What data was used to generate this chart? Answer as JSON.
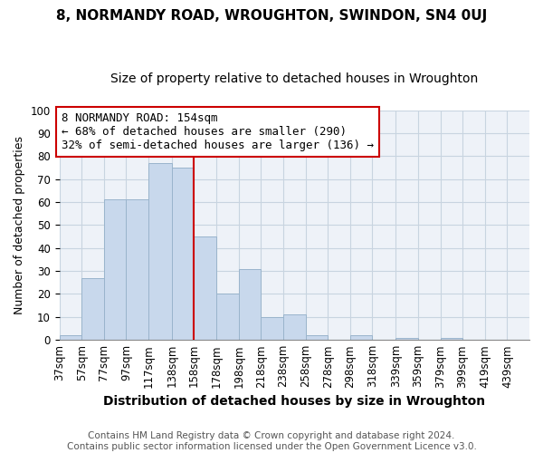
{
  "title": "8, NORMANDY ROAD, WROUGHTON, SWINDON, SN4 0UJ",
  "subtitle": "Size of property relative to detached houses in Wroughton",
  "xlabel": "Distribution of detached houses by size in Wroughton",
  "ylabel": "Number of detached properties",
  "bar_edges": [
    37,
    57,
    77,
    97,
    117,
    138,
    158,
    178,
    198,
    218,
    238,
    258,
    278,
    298,
    318,
    339,
    359,
    379,
    399,
    419,
    439
  ],
  "bar_heights": [
    2,
    27,
    61,
    61,
    77,
    75,
    45,
    20,
    31,
    10,
    11,
    2,
    0,
    2,
    0,
    1,
    0,
    1,
    0,
    0
  ],
  "bar_color": "#c8d8ec",
  "bar_edgecolor": "#9ab4cc",
  "grid_color": "#c8d4e0",
  "vline_x": 158,
  "vline_color": "#cc0000",
  "ylim": [
    0,
    100
  ],
  "annotation_title": "8 NORMANDY ROAD: 154sqm",
  "annotation_line1": "← 68% of detached houses are smaller (290)",
  "annotation_line2": "32% of semi-detached houses are larger (136) →",
  "annotation_box_color": "#ffffff",
  "annotation_box_edgecolor": "#cc0000",
  "footnote1": "Contains HM Land Registry data © Crown copyright and database right 2024.",
  "footnote2": "Contains public sector information licensed under the Open Government Licence v3.0.",
  "title_fontsize": 11,
  "subtitle_fontsize": 10,
  "xlabel_fontsize": 10,
  "ylabel_fontsize": 9,
  "tick_fontsize": 8.5,
  "annotation_fontsize": 9,
  "footnote_fontsize": 7.5,
  "fig_background": "#ffffff",
  "plot_background": "#eef2f8"
}
